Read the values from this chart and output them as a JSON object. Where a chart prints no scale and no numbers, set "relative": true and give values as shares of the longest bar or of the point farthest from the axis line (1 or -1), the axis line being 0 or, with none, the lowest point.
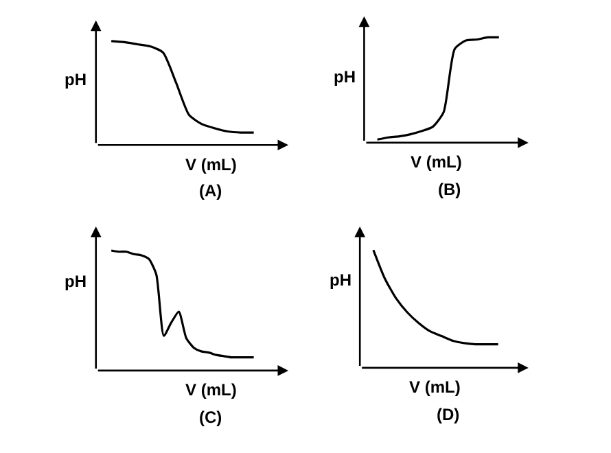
{
  "chart_data": [
    {
      "type": "line",
      "relative": true,
      "xlabel": "V (mL)",
      "ylabel": "pH",
      "annotations": [
        "(A)"
      ],
      "color": "#000000",
      "categories": [
        null,
        null,
        null,
        null,
        null,
        null,
        null,
        null,
        null,
        null,
        null,
        null
      ],
      "values": [
        1,
        0.99,
        0.97,
        0.95,
        0.89,
        0.6,
        0.29,
        0.2,
        0.16,
        0.13,
        0.12,
        0.12
      ]
    },
    {
      "type": "line",
      "relative": true,
      "xlabel": "V (mL)",
      "ylabel": "pH",
      "annotations": [
        "(B)"
      ],
      "color": "#000000",
      "categories": [
        null,
        null,
        null,
        null,
        null,
        null,
        null,
        null,
        null,
        null,
        null,
        null
      ],
      "values": [
        0.03,
        0.05,
        0.06,
        0.08,
        0.11,
        0.15,
        0.29,
        0.89,
        0.97,
        0.98,
        1,
        1
      ]
    },
    {
      "type": "line",
      "relative": true,
      "xlabel": "V (mL)",
      "ylabel": "pH",
      "annotations": [
        "(C)"
      ],
      "color": "#000000",
      "categories": [
        null,
        null,
        null,
        null,
        null,
        null,
        null,
        null,
        null,
        null,
        null,
        null,
        null,
        null,
        null,
        null,
        null,
        null,
        null,
        null
      ],
      "values": [
        1,
        0.99,
        0.99,
        0.97,
        0.96,
        0.93,
        0.8,
        0.29,
        0.4,
        0.49,
        0.27,
        0.19,
        0.16,
        0.15,
        0.13,
        0.12,
        0.11,
        0.11,
        0.11,
        0.11
      ]
    },
    {
      "type": "line",
      "relative": true,
      "xlabel": "V (mL)",
      "ylabel": "pH",
      "annotations": [
        "(D)"
      ],
      "color": "#000000",
      "categories": [
        null,
        null,
        null,
        null,
        null,
        null,
        null,
        null,
        null,
        null,
        null,
        null
      ],
      "values": [
        1,
        0.76,
        0.59,
        0.47,
        0.38,
        0.31,
        0.27,
        0.23,
        0.21,
        0.2,
        0.2,
        0.2
      ]
    }
  ]
}
